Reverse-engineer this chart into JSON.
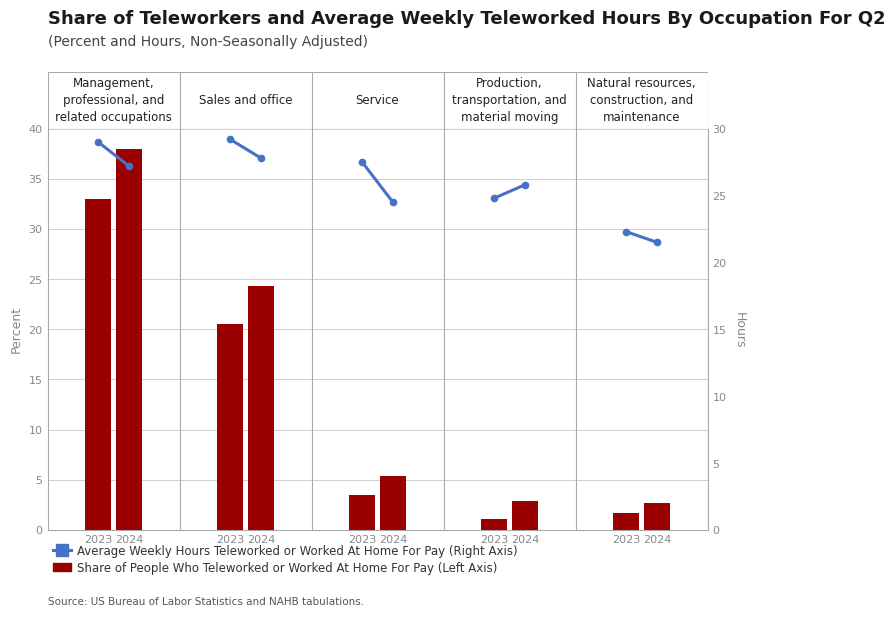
{
  "title": "Share of Teleworkers and Average Weekly Teleworked Hours By Occupation For Q2",
  "subtitle": "(Percent and Hours, Non-Seasonally Adjusted)",
  "categories": [
    "Management,\nprofessional, and\nrelated occupations",
    "Sales and office",
    "Service",
    "Production,\ntransportation, and\nmaterial moving",
    "Natural resources,\nconstruction, and\nmaintenance"
  ],
  "bar_values_2023": [
    33.0,
    20.5,
    3.5,
    1.1,
    1.7
  ],
  "bar_values_2024": [
    38.0,
    24.3,
    5.4,
    2.9,
    2.7
  ],
  "line_values_2023": [
    29.0,
    29.2,
    27.5,
    24.8,
    22.3
  ],
  "line_values_2024": [
    27.2,
    27.8,
    24.5,
    25.8,
    21.5
  ],
  "bar_color": "#9b0000",
  "line_color": "#4472c4",
  "ylim_left": [
    0,
    40
  ],
  "ylim_right": [
    0,
    30
  ],
  "yticks_left": [
    0,
    5,
    10,
    15,
    20,
    25,
    30,
    35,
    40
  ],
  "yticks_right": [
    0,
    5,
    10,
    15,
    20,
    25,
    30
  ],
  "ylabel_left": "Percent",
  "ylabel_right": "Hours",
  "source": "Source: US Bureau of Labor Statistics and NAHB tabulations.",
  "legend_line": "Average Weekly Hours Teleworked or Worked At Home For Pay (Right Axis)",
  "legend_bar": "Share of People Who Teleworked or Worked At Home For Pay (Left Axis)",
  "background_color": "#ffffff",
  "grid_color": "#d0d0d0",
  "title_fontsize": 13,
  "subtitle_fontsize": 10,
  "label_fontsize": 9,
  "divider_color": "#aaaaaa",
  "tick_color": "#888888"
}
